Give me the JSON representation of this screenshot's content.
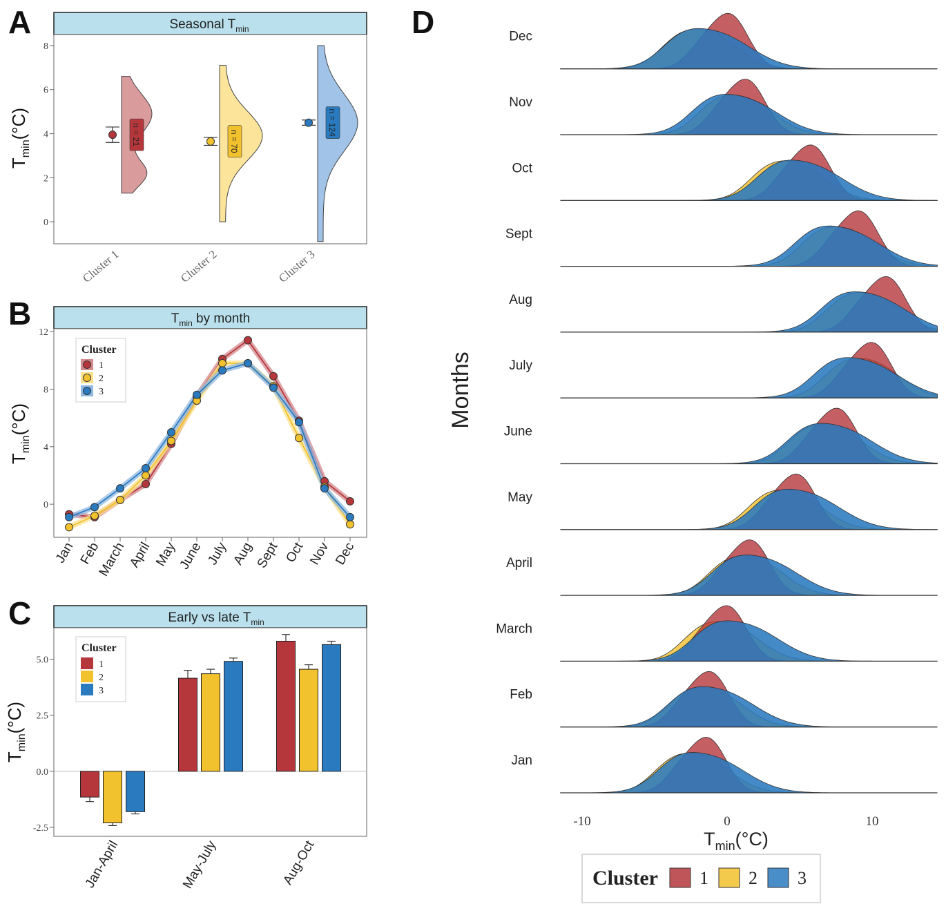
{
  "figure": {
    "panels": {
      "A": {
        "letter": "A",
        "title_main": "Seasonal T",
        "title_sub": "min"
      },
      "B": {
        "letter": "B",
        "title_main": "T",
        "title_sub": "min",
        "title_tail": " by month"
      },
      "C": {
        "letter": "C",
        "title_main": "Early vs late T",
        "title_sub": "min"
      },
      "D": {
        "letter": "D"
      }
    },
    "ylabel": {
      "main": "T",
      "sub": "min",
      "tail": "(°C)"
    },
    "legend_title": "Cluster",
    "cluster_names": [
      "1",
      "2",
      "3"
    ],
    "colors": {
      "c1": "#b5373c",
      "c2": "#f2c12e",
      "c3": "#2a7abf",
      "c1_light": "#d4898c",
      "c2_light": "#fbe08a",
      "c3_light": "#8fb8e3",
      "strip": "#b9e0ec"
    }
  },
  "chart_data": [
    {
      "panel": "A",
      "type": "violin",
      "categories": [
        "Cluster 1",
        "Cluster 2",
        "Cluster 3"
      ],
      "means": [
        3.95,
        3.65,
        4.5
      ],
      "errors": [
        0.35,
        0.18,
        0.12
      ],
      "n_labels": [
        "n = 21",
        "n = 70",
        "n = 124"
      ],
      "ylim": [
        -1,
        8.5
      ],
      "yticks": [
        "0",
        "2",
        "4",
        "6",
        "8"
      ],
      "ytick_values": [
        0,
        2,
        4,
        6,
        8
      ]
    },
    {
      "panel": "B",
      "type": "line",
      "x": [
        "Jan",
        "Feb",
        "March",
        "April",
        "May",
        "June",
        "July",
        "Aug",
        "Sept",
        "Oct",
        "Nov",
        "Dec"
      ],
      "series": [
        {
          "name": "1",
          "values": [
            -0.7,
            -0.9,
            0.3,
            1.4,
            4.2,
            7.5,
            10.1,
            11.4,
            8.9,
            5.8,
            1.6,
            0.2
          ]
        },
        {
          "name": "2",
          "values": [
            -1.6,
            -0.8,
            0.3,
            2.0,
            4.4,
            7.2,
            9.8,
            9.8,
            8.2,
            4.6,
            1.2,
            -1.4
          ]
        },
        {
          "name": "3",
          "values": [
            -0.9,
            -0.2,
            1.1,
            2.5,
            5.0,
            7.6,
            9.3,
            9.8,
            8.1,
            5.7,
            1.1,
            -0.9
          ]
        }
      ],
      "ylim": [
        -2.3,
        12.2
      ],
      "yticks": [
        "0",
        "4",
        "8",
        "12"
      ],
      "ytick_values": [
        0,
        4,
        8,
        12
      ]
    },
    {
      "panel": "C",
      "type": "bar",
      "categories": [
        "Jan-April",
        "May-July",
        "Aug-Oct"
      ],
      "series": [
        {
          "name": "1",
          "values": [
            -1.15,
            4.15,
            5.8
          ],
          "errors": [
            0.2,
            0.35,
            0.3
          ]
        },
        {
          "name": "2",
          "values": [
            -2.3,
            4.35,
            4.55
          ],
          "errors": [
            0.12,
            0.2,
            0.2
          ]
        },
        {
          "name": "3",
          "values": [
            -1.8,
            4.9,
            5.65
          ],
          "errors": [
            0.1,
            0.15,
            0.15
          ]
        }
      ],
      "ylim": [
        -2.9,
        6.4
      ],
      "yticks": [
        "-2.5",
        "0.0",
        "2.5",
        "5.0"
      ],
      "ytick_values": [
        -2.5,
        0,
        2.5,
        5
      ]
    },
    {
      "panel": "D",
      "type": "ridgeline",
      "months": [
        "Jan",
        "Feb",
        "March",
        "April",
        "May",
        "June",
        "July",
        "Aug",
        "Sept",
        "Oct",
        "Nov",
        "Dec"
      ],
      "xlabel": {
        "main": "T",
        "sub": "min",
        "tail": "(°C)"
      },
      "ylabel": "Months",
      "xticks": [
        "-10",
        "0",
        "10"
      ],
      "xtick_values": [
        -10,
        0,
        10
      ],
      "xlim": [
        -11.5,
        14.5
      ],
      "series_means": {
        "1": [
          -1.2,
          -1.0,
          0.2,
          1.8,
          5.0,
          7.8,
          10.2,
          11.2,
          9.3,
          6.0,
          1.5,
          0.3
        ],
        "2": [
          -1.8,
          -0.9,
          0.2,
          1.9,
          4.6,
          7.4,
          9.9,
          10.0,
          8.3,
          4.8,
          1.2,
          -1.3
        ],
        "3": [
          -1.2,
          -0.5,
          1.2,
          2.5,
          5.4,
          7.7,
          9.5,
          10.0,
          8.2,
          5.6,
          1.1,
          -0.8
        ]
      }
    }
  ]
}
